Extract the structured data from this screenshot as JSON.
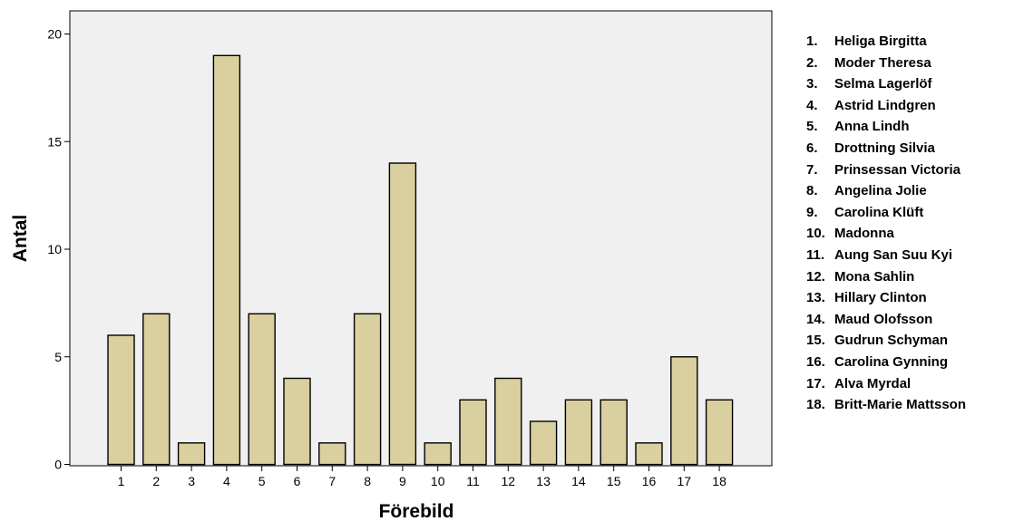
{
  "chart_data": {
    "type": "bar",
    "xlabel": "Förebild",
    "ylabel": "Antal",
    "categories": [
      "1",
      "2",
      "3",
      "4",
      "5",
      "6",
      "7",
      "8",
      "9",
      "10",
      "11",
      "12",
      "13",
      "14",
      "15",
      "16",
      "17",
      "18"
    ],
    "values": [
      6,
      7,
      1,
      19,
      7,
      4,
      1,
      7,
      14,
      1,
      3,
      4,
      2,
      3,
      3,
      1,
      5,
      3
    ],
    "ylim": [
      0,
      21
    ],
    "yticks": [
      0,
      5,
      10,
      15,
      20
    ],
    "grid": false,
    "legend_position": "right",
    "colors": {
      "bar": "#d9cf9f",
      "bar_edge": "#000000",
      "plot_bg": "#f0f0f0"
    },
    "legend": [
      {
        "num": "1.",
        "name": "Heliga Birgitta"
      },
      {
        "num": "2.",
        "name": "Moder Theresa"
      },
      {
        "num": "3.",
        "name": "Selma Lagerlöf"
      },
      {
        "num": "4.",
        "name": "Astrid Lindgren"
      },
      {
        "num": "5.",
        "name": "Anna Lindh"
      },
      {
        "num": "6.",
        "name": "Drottning Silvia"
      },
      {
        "num": "7.",
        "name": "Prinsessan Victoria"
      },
      {
        "num": "8.",
        "name": "Angelina Jolie"
      },
      {
        "num": "9.",
        "name": "Carolina Klüft"
      },
      {
        "num": "10.",
        "name": "Madonna"
      },
      {
        "num": "11.",
        "name": "Aung San Suu Kyi"
      },
      {
        "num": "12.",
        "name": "Mona Sahlin"
      },
      {
        "num": "13.",
        "name": "Hillary Clinton"
      },
      {
        "num": "14.",
        "name": "Maud Olofsson"
      },
      {
        "num": "15.",
        "name": "Gudrun Schyman"
      },
      {
        "num": "16.",
        "name": "Carolina Gynning"
      },
      {
        "num": "17.",
        "name": "Alva Myrdal"
      },
      {
        "num": "18.",
        "name": "Britt-Marie Mattsson"
      }
    ]
  }
}
